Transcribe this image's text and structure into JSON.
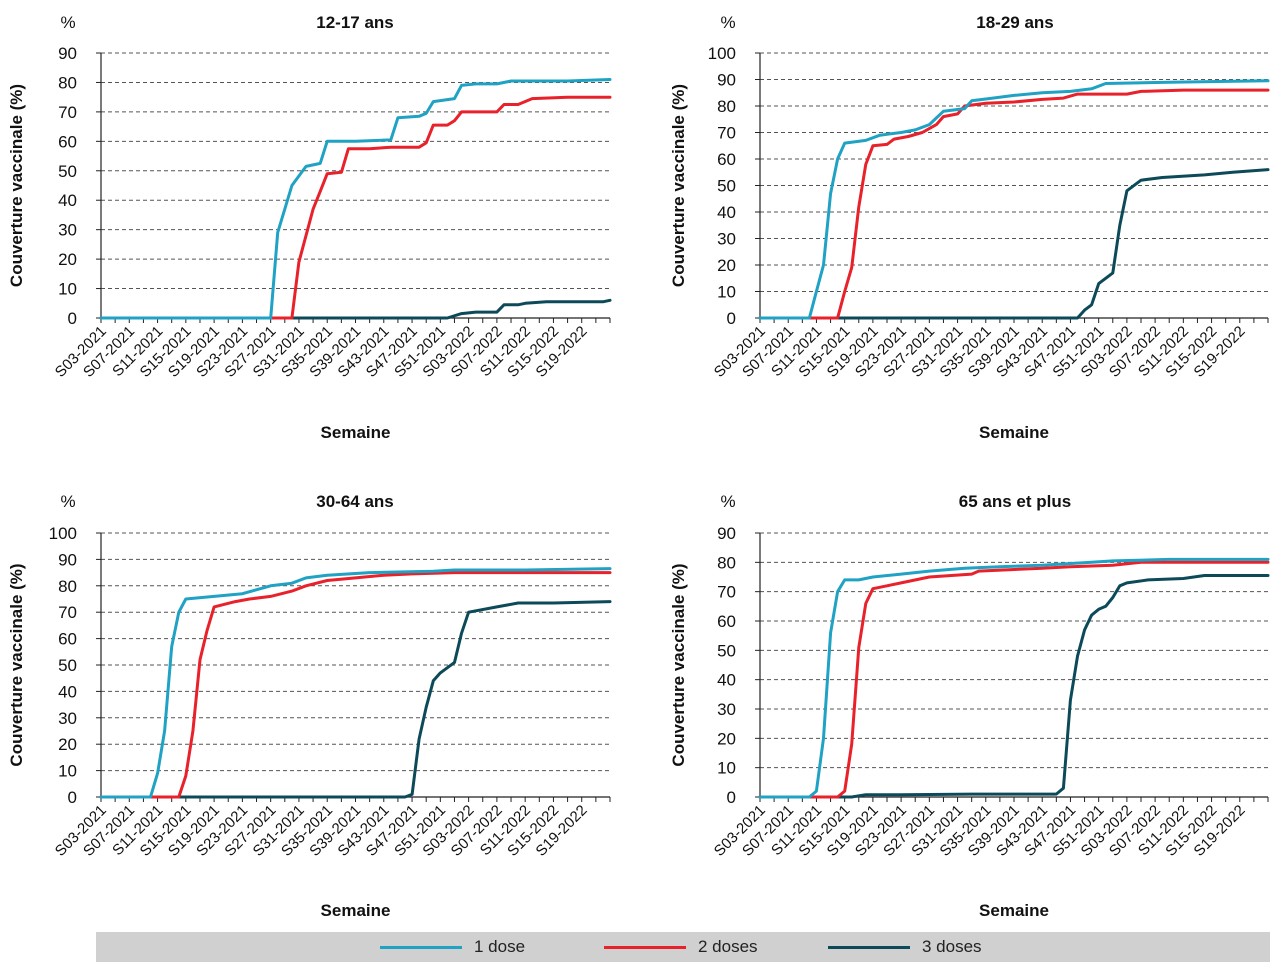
{
  "colors": {
    "dose1": "#1fa2c4",
    "dose2": "#e8212b",
    "dose3": "#0c4a5a",
    "grid": "#555555",
    "axis": "#222222"
  },
  "legend": {
    "items": [
      {
        "label": "1 dose",
        "color": "#1fa2c4"
      },
      {
        "label": "2 doses",
        "color": "#e8212b"
      },
      {
        "label": "3 doses",
        "color": "#0c4a5a"
      }
    ]
  },
  "chart_data": [
    {
      "type": "line",
      "title": "12-17 ans",
      "unit": "%",
      "ylabel": "Couverture vaccinale (%)",
      "xlabel": "Semaine",
      "ylim": [
        0,
        90
      ],
      "ystep": 10,
      "grid": true,
      "x_ticks": [
        "S03-2021",
        "S07-2021",
        "S11-2021",
        "S15-2021",
        "S19-2021",
        "S23-2021",
        "S27-2021",
        "S31-2021",
        "S35-2021",
        "S39-2021",
        "S43-2021",
        "S47-2021",
        "S51-2021",
        "S03-2022",
        "S07-2022",
        "S11-2022",
        "S15-2022",
        "S19-2022"
      ],
      "series": [
        {
          "name": "1 dose",
          "points": [
            [
              0,
              0
            ],
            [
              23,
              0
            ],
            [
              24,
              0
            ],
            [
              25,
              29
            ],
            [
              27,
              45
            ],
            [
              29,
              51.5
            ],
            [
              31,
              52.5
            ],
            [
              32,
              60
            ],
            [
              36,
              60
            ],
            [
              41,
              60.5
            ],
            [
              42,
              68
            ],
            [
              45,
              68.5
            ],
            [
              46,
              69.5
            ],
            [
              47,
              73.5
            ],
            [
              50,
              74.5
            ],
            [
              51,
              79
            ],
            [
              53,
              79.5
            ],
            [
              56,
              79.5
            ],
            [
              58,
              80.5
            ],
            [
              66,
              80.5
            ],
            [
              72,
              81
            ]
          ]
        },
        {
          "name": "2 doses",
          "points": [
            [
              0,
              0
            ],
            [
              26,
              0
            ],
            [
              27,
              0
            ],
            [
              28,
              19
            ],
            [
              30,
              37
            ],
            [
              31,
              43
            ],
            [
              32,
              49
            ],
            [
              34,
              49.5
            ],
            [
              35,
              57.5
            ],
            [
              38,
              57.5
            ],
            [
              41,
              58
            ],
            [
              45,
              58
            ],
            [
              46,
              59.5
            ],
            [
              47,
              65.5
            ],
            [
              49,
              65.5
            ],
            [
              50,
              67
            ],
            [
              51,
              70
            ],
            [
              56,
              70
            ],
            [
              57,
              72.5
            ],
            [
              59,
              72.5
            ],
            [
              61,
              74.5
            ],
            [
              66,
              75
            ],
            [
              72,
              75
            ]
          ]
        },
        {
          "name": "3 doses",
          "points": [
            [
              0,
              0
            ],
            [
              49,
              0
            ],
            [
              51,
              1.5
            ],
            [
              53,
              2
            ],
            [
              56,
              2
            ],
            [
              57,
              4.5
            ],
            [
              59,
              4.5
            ],
            [
              60,
              5
            ],
            [
              63,
              5.5
            ],
            [
              71,
              5.5
            ],
            [
              72,
              6
            ]
          ]
        }
      ]
    },
    {
      "type": "line",
      "title": "18-29 ans",
      "unit": "%",
      "ylabel": "Couverture vaccinale (%)",
      "xlabel": "Semaine",
      "ylim": [
        0,
        100
      ],
      "ystep": 10,
      "grid": true,
      "x_ticks": [
        "S03-2021",
        "S07-2021",
        "S11-2021",
        "S15-2021",
        "S19-2021",
        "S23-2021",
        "S27-2021",
        "S31-2021",
        "S35-2021",
        "S39-2021",
        "S43-2021",
        "S47-2021",
        "S51-2021",
        "S03-2022",
        "S07-2022",
        "S11-2022",
        "S15-2022",
        "S19-2022"
      ],
      "series": [
        {
          "name": "1 dose",
          "points": [
            [
              0,
              0
            ],
            [
              7,
              0
            ],
            [
              8,
              10
            ],
            [
              9,
              20
            ],
            [
              10,
              47
            ],
            [
              11,
              60
            ],
            [
              12,
              66
            ],
            [
              15,
              67
            ],
            [
              17,
              69
            ],
            [
              20,
              70
            ],
            [
              22,
              71
            ],
            [
              24,
              73
            ],
            [
              26,
              78
            ],
            [
              29,
              79
            ],
            [
              30,
              82
            ],
            [
              33,
              83
            ],
            [
              36,
              84
            ],
            [
              40,
              85
            ],
            [
              44,
              85.5
            ],
            [
              47,
              86.5
            ],
            [
              49,
              88.5
            ],
            [
              58,
              89
            ],
            [
              72,
              89.5
            ]
          ]
        },
        {
          "name": "2 doses",
          "points": [
            [
              0,
              0
            ],
            [
              11,
              0
            ],
            [
              12,
              10
            ],
            [
              13,
              19
            ],
            [
              14,
              42
            ],
            [
              15,
              58
            ],
            [
              16,
              65
            ],
            [
              18,
              65.5
            ],
            [
              19,
              67.5
            ],
            [
              21,
              68.5
            ],
            [
              23,
              70
            ],
            [
              25,
              73
            ],
            [
              26,
              76
            ],
            [
              28,
              77
            ],
            [
              29,
              80
            ],
            [
              32,
              81
            ],
            [
              36,
              81.5
            ],
            [
              40,
              82.5
            ],
            [
              43,
              83
            ],
            [
              45,
              84.5
            ],
            [
              52,
              84.5
            ],
            [
              54,
              85.5
            ],
            [
              60,
              86
            ],
            [
              72,
              86
            ]
          ]
        },
        {
          "name": "3 doses",
          "points": [
            [
              0,
              0
            ],
            [
              45,
              0
            ],
            [
              46,
              3
            ],
            [
              47,
              5
            ],
            [
              48,
              13
            ],
            [
              49,
              15
            ],
            [
              50,
              17
            ],
            [
              51,
              35
            ],
            [
              52,
              48
            ],
            [
              54,
              52
            ],
            [
              57,
              53
            ],
            [
              63,
              54
            ],
            [
              67,
              55
            ],
            [
              72,
              56
            ]
          ]
        }
      ]
    },
    {
      "type": "line",
      "title": "30-64 ans",
      "unit": "%",
      "ylabel": "Couverture vaccinale (%)",
      "xlabel": "Semaine",
      "ylim": [
        0,
        100
      ],
      "ystep": 10,
      "grid": true,
      "x_ticks": [
        "S03-2021",
        "S07-2021",
        "S11-2021",
        "S15-2021",
        "S19-2021",
        "S23-2021",
        "S27-2021",
        "S31-2021",
        "S35-2021",
        "S39-2021",
        "S43-2021",
        "S47-2021",
        "S51-2021",
        "S03-2022",
        "S07-2022",
        "S11-2022",
        "S15-2022",
        "S19-2022"
      ],
      "series": [
        {
          "name": "1 dose",
          "points": [
            [
              0,
              0
            ],
            [
              7,
              0
            ],
            [
              8,
              9
            ],
            [
              9,
              25
            ],
            [
              10,
              57
            ],
            [
              11,
              70
            ],
            [
              12,
              75
            ],
            [
              16,
              76
            ],
            [
              20,
              77
            ],
            [
              24,
              80
            ],
            [
              27,
              81
            ],
            [
              29,
              83
            ],
            [
              32,
              84
            ],
            [
              38,
              85
            ],
            [
              47,
              85.5
            ],
            [
              50,
              86
            ],
            [
              60,
              86
            ],
            [
              72,
              86.5
            ]
          ]
        },
        {
          "name": "2 doses",
          "points": [
            [
              0,
              0
            ],
            [
              11,
              0
            ],
            [
              12,
              8
            ],
            [
              13,
              25
            ],
            [
              14,
              52
            ],
            [
              15,
              63
            ],
            [
              16,
              72
            ],
            [
              19,
              74
            ],
            [
              21,
              75
            ],
            [
              24,
              76
            ],
            [
              27,
              78
            ],
            [
              29,
              80
            ],
            [
              32,
              82
            ],
            [
              36,
              83
            ],
            [
              40,
              84
            ],
            [
              44,
              84.5
            ],
            [
              50,
              85
            ],
            [
              60,
              85
            ],
            [
              72,
              85
            ]
          ]
        },
        {
          "name": "3 doses",
          "points": [
            [
              0,
              0
            ],
            [
              20,
              0
            ],
            [
              43,
              0
            ],
            [
              44,
              1
            ],
            [
              45,
              22
            ],
            [
              46,
              34
            ],
            [
              47,
              44
            ],
            [
              48,
              47
            ],
            [
              50,
              51
            ],
            [
              51,
              62
            ],
            [
              52,
              70
            ],
            [
              56,
              72
            ],
            [
              59,
              73.5
            ],
            [
              64,
              73.5
            ],
            [
              72,
              74
            ]
          ]
        }
      ]
    },
    {
      "type": "line",
      "title": "65 ans et plus",
      "unit": "%",
      "ylabel": "Couverture vaccinale (%)",
      "xlabel": "Semaine",
      "ylim": [
        0,
        90
      ],
      "ystep": 10,
      "grid": true,
      "x_ticks": [
        "S03-2021",
        "S07-2021",
        "S11-2021",
        "S15-2021",
        "S19-2021",
        "S23-2021",
        "S27-2021",
        "S31-2021",
        "S35-2021",
        "S39-2021",
        "S43-2021",
        "S47-2021",
        "S51-2021",
        "S03-2022",
        "S07-2022",
        "S11-2022",
        "S15-2022",
        "S19-2022"
      ],
      "series": [
        {
          "name": "1 dose",
          "points": [
            [
              0,
              0
            ],
            [
              7,
              0
            ],
            [
              8,
              2
            ],
            [
              9,
              20
            ],
            [
              10,
              56
            ],
            [
              11,
              70
            ],
            [
              12,
              74
            ],
            [
              14,
              74
            ],
            [
              16,
              75
            ],
            [
              20,
              76
            ],
            [
              24,
              77
            ],
            [
              29,
              78
            ],
            [
              34,
              78.5
            ],
            [
              40,
              79
            ],
            [
              47,
              80
            ],
            [
              50,
              80.5
            ],
            [
              58,
              81
            ],
            [
              72,
              81
            ]
          ]
        },
        {
          "name": "2 doses",
          "points": [
            [
              0,
              0
            ],
            [
              11,
              0
            ],
            [
              12,
              2
            ],
            [
              13,
              18
            ],
            [
              14,
              51
            ],
            [
              15,
              66
            ],
            [
              16,
              71
            ],
            [
              18,
              72
            ],
            [
              20,
              73
            ],
            [
              24,
              75
            ],
            [
              30,
              76
            ],
            [
              31,
              77
            ],
            [
              40,
              78
            ],
            [
              44,
              78.5
            ],
            [
              50,
              79
            ],
            [
              54,
              80
            ],
            [
              72,
              80
            ]
          ]
        },
        {
          "name": "3 doses",
          "points": [
            [
              0,
              0
            ],
            [
              13,
              0
            ],
            [
              15,
              0.8
            ],
            [
              20,
              0.8
            ],
            [
              30,
              1
            ],
            [
              42,
              1
            ],
            [
              43,
              3
            ],
            [
              44,
              33
            ],
            [
              45,
              48
            ],
            [
              46,
              57
            ],
            [
              47,
              62
            ],
            [
              48,
              64
            ],
            [
              49,
              65
            ],
            [
              50,
              68
            ],
            [
              51,
              72
            ],
            [
              52,
              73
            ],
            [
              55,
              74
            ],
            [
              60,
              74.5
            ],
            [
              63,
              75.5
            ],
            [
              72,
              75.5
            ]
          ]
        }
      ]
    }
  ]
}
